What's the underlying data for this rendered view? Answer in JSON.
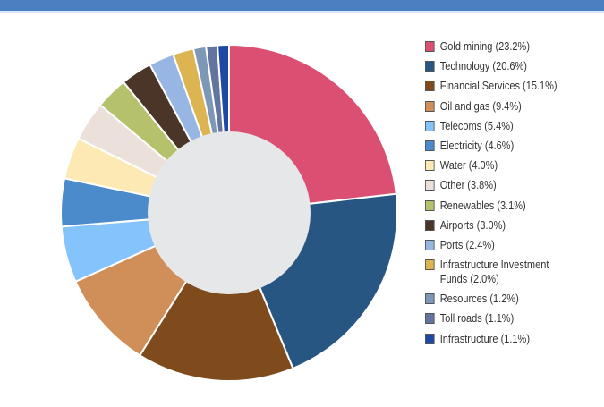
{
  "chart_data": {
    "type": "pie",
    "donut": true,
    "title": "",
    "legend_position": "right",
    "slices": [
      {
        "label": "Gold mining (23.2%)",
        "name": "Gold mining",
        "value": 23.2,
        "color": "#db4f73"
      },
      {
        "label": "Technology (20.6%)",
        "name": "Technology",
        "value": 20.6,
        "color": "#285683"
      },
      {
        "label": "Financial Services (15.1%)",
        "name": "Financial Services",
        "value": 15.1,
        "color": "#7f4b1c"
      },
      {
        "label": "Oil and gas (9.4%)",
        "name": "Oil and gas",
        "value": 9.4,
        "color": "#d08f58"
      },
      {
        "label": "Telecoms (5.4%)",
        "name": "Telecoms",
        "value": 5.4,
        "color": "#84c3fb"
      },
      {
        "label": "Electricity (4.6%)",
        "name": "Electricity",
        "value": 4.6,
        "color": "#4b8bcb"
      },
      {
        "label": "Water (4.0%)",
        "name": "Water",
        "value": 4.0,
        "color": "#fde9b4"
      },
      {
        "label": "Other (3.8%)",
        "name": "Other",
        "value": 3.8,
        "color": "#ebe1da"
      },
      {
        "label": "Renewables (3.1%)",
        "name": "Renewables",
        "value": 3.1,
        "color": "#b6c16c"
      },
      {
        "label": "Airports (3.0%)",
        "name": "Airports",
        "value": 3.0,
        "color": "#4b3528"
      },
      {
        "label": "Ports (2.4%)",
        "name": "Ports",
        "value": 2.4,
        "color": "#98b6e3"
      },
      {
        "label": "Infrastructure Investment Funds (2.0%)",
        "name": "Infrastructure Investment Funds",
        "value": 2.0,
        "color": "#dcb452"
      },
      {
        "label": "Resources (1.2%)",
        "name": "Resources",
        "value": 1.2,
        "color": "#7d98b6"
      },
      {
        "label": "Toll roads (1.1%)",
        "name": "Toll roads",
        "value": 1.1,
        "color": "#62749f"
      },
      {
        "label": "Infrastructure (1.1%)",
        "name": "Infrastructure",
        "value": 1.1,
        "color": "#1d48a4"
      }
    ]
  }
}
